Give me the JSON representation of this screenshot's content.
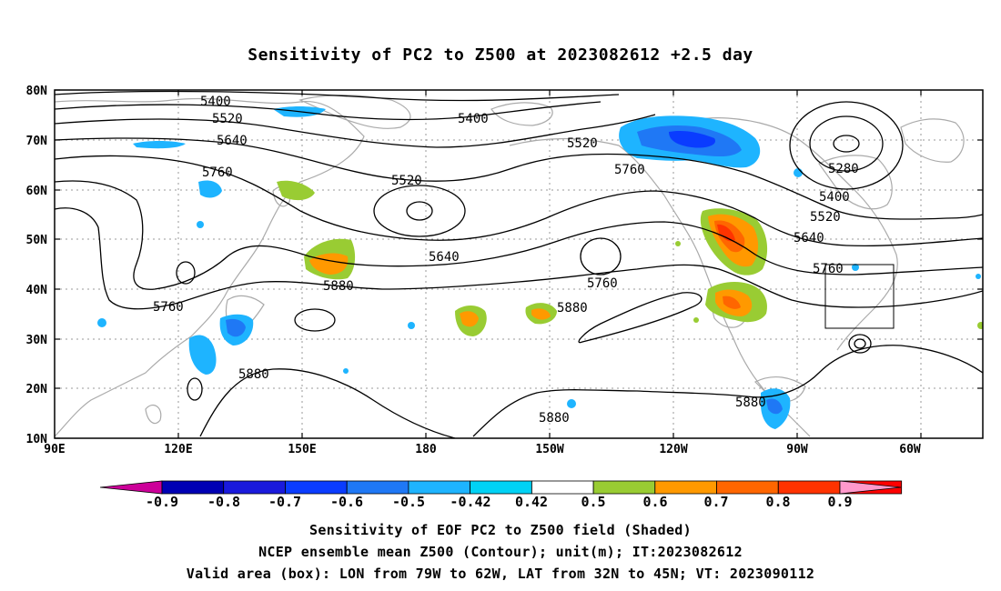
{
  "title": "Sensitivity of PC2 to Z500 at 2023082612 +2.5 day",
  "map": {
    "lat_ticks": [
      "80N",
      "70N",
      "60N",
      "50N",
      "40N",
      "30N",
      "20N",
      "10N"
    ],
    "lon_ticks": [
      "90E",
      "120E",
      "150E",
      "180",
      "150W",
      "120W",
      "90W",
      "60W"
    ]
  },
  "contour_labels": [
    "5400",
    "5520",
    "5640",
    "5760",
    "5400",
    "5520",
    "5520",
    "5760",
    "5280",
    "5400",
    "5520",
    "5640",
    "5760",
    "5640",
    "5760",
    "5880",
    "5880",
    "5880",
    "5880",
    "5760",
    "5880"
  ],
  "colorbar": {
    "labels": [
      "-0.9",
      "-0.8",
      "-0.7",
      "-0.6",
      "-0.5",
      "-0.42",
      "0.42",
      "0.5",
      "0.6",
      "0.7",
      "0.8",
      "0.9"
    ],
    "colors": [
      "#cc0099",
      "#0000b4",
      "#1a1adc",
      "#0a3cff",
      "#1f78f5",
      "#1eb4ff",
      "#00d2f5",
      "#ffffff",
      "#99cc33",
      "#ff9900",
      "#ff6600",
      "#ff3300",
      "#ff0000",
      "#ff99cc"
    ]
  },
  "captions": [
    "Sensitivity of EOF PC2 to Z500 field (Shaded)",
    "NCEP ensemble mean Z500 (Contour); unit(m); IT:2023082612",
    "Valid area (box): LON from 79W to 62W, LAT from 32N to 45N; VT: 2023090112"
  ]
}
